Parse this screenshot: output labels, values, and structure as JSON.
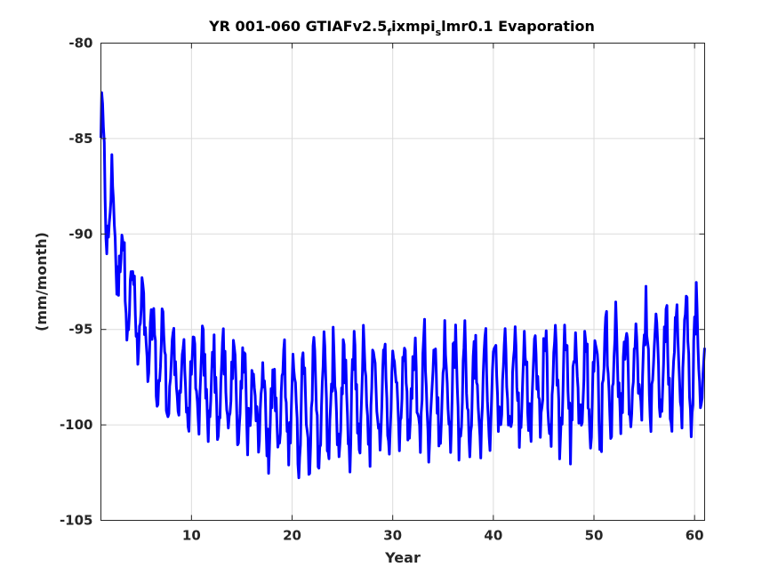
{
  "chart_data": {
    "type": "line",
    "title_parts": {
      "main": "YR 001-060 GTIAFv2.5",
      "sub1": "f",
      "mid": "ixmpi",
      "sub2": "s",
      "end": "lmr0.1 Evaporation"
    },
    "xlabel": "Year",
    "ylabel": "(mm/month)",
    "xlim": [
      1,
      61
    ],
    "ylim": [
      -105,
      -80
    ],
    "xticks": [
      10,
      20,
      30,
      40,
      50,
      60
    ],
    "xtick_labels": [
      "10",
      "20",
      "30",
      "40",
      "50",
      "60"
    ],
    "yticks": [
      -105,
      -100,
      -95,
      -90,
      -85,
      -80
    ],
    "ytick_labels": [
      "-105",
      "-100",
      "-95",
      "-90",
      "-85",
      "-80"
    ],
    "grid": true,
    "series_color": "#0000ff",
    "sampling": "monthly",
    "x_start": 1.0,
    "annual_envelope": [
      {
        "year": 1,
        "center": -86.5,
        "amplitude": 3.5
      },
      {
        "year": 2,
        "center": -89.0,
        "amplitude": 2.5
      },
      {
        "year": 3,
        "center": -91.5,
        "amplitude": 2.0
      },
      {
        "year": 4,
        "center": -93.5,
        "amplitude": 2.0
      },
      {
        "year": 5,
        "center": -95.0,
        "amplitude": 2.2
      },
      {
        "year": 6,
        "center": -96.0,
        "amplitude": 2.3
      },
      {
        "year": 8,
        "center": -97.5,
        "amplitude": 2.3
      },
      {
        "year": 10,
        "center": -97.8,
        "amplitude": 2.2
      },
      {
        "year": 15,
        "center": -98.2,
        "amplitude": 2.3
      },
      {
        "year": 18,
        "center": -99.3,
        "amplitude": 2.5
      },
      {
        "year": 20,
        "center": -99.0,
        "amplitude": 2.8
      },
      {
        "year": 25,
        "center": -98.8,
        "amplitude": 2.8
      },
      {
        "year": 30,
        "center": -98.3,
        "amplitude": 2.8
      },
      {
        "year": 35,
        "center": -98.2,
        "amplitude": 2.8
      },
      {
        "year": 40,
        "center": -98.3,
        "amplitude": 2.8
      },
      {
        "year": 45,
        "center": -98.0,
        "amplitude": 2.8
      },
      {
        "year": 50,
        "center": -97.8,
        "amplitude": 2.8
      },
      {
        "year": 55,
        "center": -97.0,
        "amplitude": 3.0
      },
      {
        "year": 58,
        "center": -96.6,
        "amplitude": 3.0
      },
      {
        "year": 61,
        "center": -96.5,
        "amplitude": 3.0
      }
    ],
    "noise_amplitude": 1.1
  }
}
